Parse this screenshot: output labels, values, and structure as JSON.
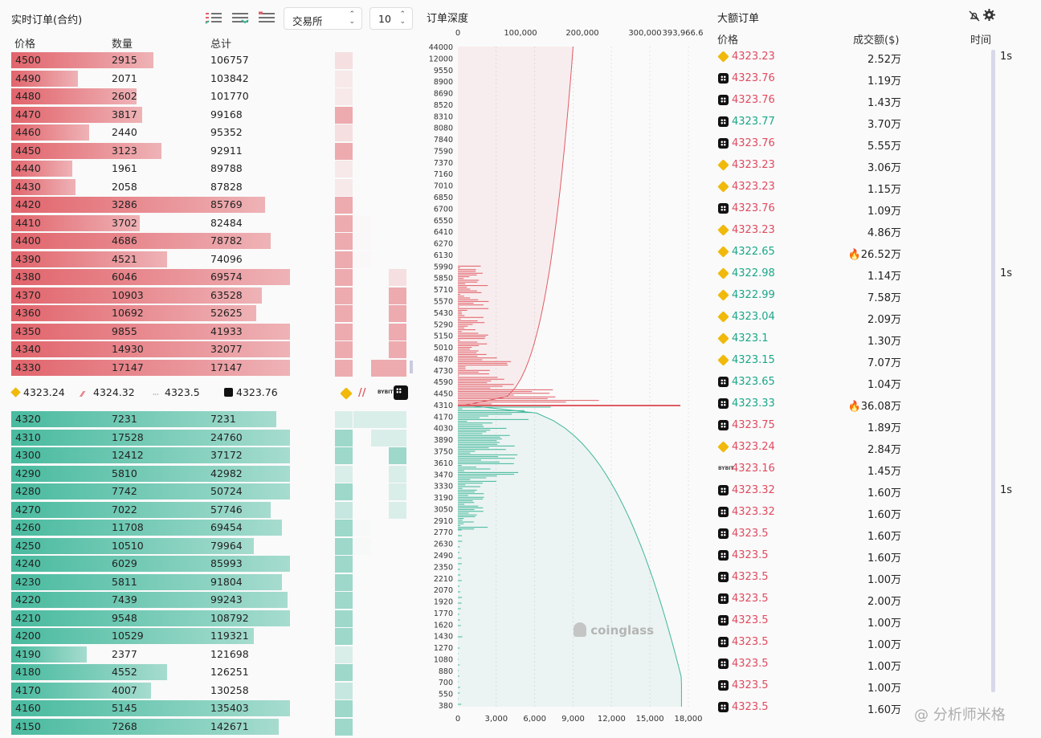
{
  "orderbook": {
    "title": "实时订单(合约)",
    "exchange_select": "交易所",
    "depth_select": "10",
    "col_price": "价格",
    "col_qty": "数量",
    "col_total": "总计",
    "asks": [
      {
        "p": "4500",
        "q": "2915",
        "t": "106757",
        "w": 0.51,
        "ex": [
          0.3,
          0,
          0,
          0
        ]
      },
      {
        "p": "4490",
        "q": "2071",
        "t": "103842",
        "w": 0.24,
        "ex": [
          0.2,
          0,
          0,
          0
        ]
      },
      {
        "p": "4480",
        "q": "2602",
        "t": "101770",
        "w": 0.45,
        "ex": [
          0.2,
          0,
          0,
          0
        ]
      },
      {
        "p": "4470",
        "q": "3817",
        "t": "99168",
        "w": 0.47,
        "ex": [
          0.9,
          0,
          0,
          0
        ]
      },
      {
        "p": "4460",
        "q": "2440",
        "t": "95352",
        "w": 0.28,
        "ex": [
          0.3,
          0,
          0,
          0
        ]
      },
      {
        "p": "4450",
        "q": "3123",
        "t": "92911",
        "w": 0.54,
        "ex": [
          0.9,
          0,
          0,
          0
        ]
      },
      {
        "p": "4440",
        "q": "1961",
        "t": "89788",
        "w": 0.22,
        "ex": [
          0.2,
          0,
          0,
          0
        ]
      },
      {
        "p": "4430",
        "q": "2058",
        "t": "87828",
        "w": 0.23,
        "ex": [
          0.2,
          0,
          0,
          0
        ]
      },
      {
        "p": "4420",
        "q": "3286",
        "t": "85769",
        "w": 0.91,
        "ex": [
          0.9,
          0,
          0,
          0
        ]
      },
      {
        "p": "4410",
        "q": "3702",
        "t": "82484",
        "w": 0.46,
        "ex": [
          0.9,
          0.03,
          0,
          0
        ]
      },
      {
        "p": "4400",
        "q": "4686",
        "t": "78782",
        "w": 0.93,
        "ex": [
          0.9,
          0.03,
          0,
          0
        ]
      },
      {
        "p": "4390",
        "q": "4521",
        "t": "74096",
        "w": 0.56,
        "ex": [
          0.9,
          0.03,
          0,
          0
        ]
      },
      {
        "p": "4380",
        "q": "6046",
        "t": "69574",
        "w": 1.0,
        "ex": [
          0.9,
          0,
          0,
          0.3
        ]
      },
      {
        "p": "4370",
        "q": "10903",
        "t": "63528",
        "w": 0.9,
        "ex": [
          0.9,
          0,
          0,
          0.9
        ]
      },
      {
        "p": "4360",
        "q": "10692",
        "t": "52625",
        "w": 0.88,
        "ex": [
          0.9,
          0,
          0,
          0.9
        ]
      },
      {
        "p": "4350",
        "q": "9855",
        "t": "41933",
        "w": 1.0,
        "ex": [
          0.9,
          0,
          0,
          0.9
        ]
      },
      {
        "p": "4340",
        "q": "14930",
        "t": "32077",
        "w": 1.0,
        "ex": [
          0.9,
          0,
          0,
          0.9
        ]
      },
      {
        "p": "4330",
        "q": "17147",
        "t": "17147",
        "w": 1.0,
        "ex": [
          0.9,
          0,
          0.9,
          0.9
        ]
      }
    ],
    "ref_prices": [
      {
        "icon": "binance-icon",
        "kind": "bn",
        "price": "4323.24"
      },
      {
        "icon": "bybit-slash-icon",
        "kind": "bs",
        "price": "4324.32"
      },
      {
        "icon": "bybit-icon",
        "kind": "by",
        "price": "4323.5"
      },
      {
        "icon": "okx-icon",
        "kind": "ok",
        "price": "4323.76"
      }
    ],
    "bids": [
      {
        "p": "4320",
        "q": "7231",
        "t": "7231",
        "w": 0.95,
        "ex": [
          0.3,
          0.3,
          0.3,
          0.3
        ]
      },
      {
        "p": "4310",
        "q": "17528",
        "t": "24760",
        "w": 1.0,
        "ex": [
          0.9,
          0,
          0.3,
          0.3
        ]
      },
      {
        "p": "4300",
        "q": "12412",
        "t": "37172",
        "w": 1.0,
        "ex": [
          0.9,
          0,
          0,
          0.9
        ]
      },
      {
        "p": "4290",
        "q": "5810",
        "t": "42982",
        "w": 1.0,
        "ex": [
          0.3,
          0,
          0,
          0.3
        ]
      },
      {
        "p": "4280",
        "q": "7742",
        "t": "50724",
        "w": 1.0,
        "ex": [
          0.9,
          0,
          0,
          0.3
        ]
      },
      {
        "p": "4270",
        "q": "7022",
        "t": "57746",
        "w": 0.93,
        "ex": [
          0.5,
          0,
          0,
          0.3
        ]
      },
      {
        "p": "4260",
        "q": "11708",
        "t": "69454",
        "w": 0.97,
        "ex": [
          0.9,
          0.03,
          0,
          0
        ]
      },
      {
        "p": "4250",
        "q": "10510",
        "t": "79964",
        "w": 0.87,
        "ex": [
          0.9,
          0.03,
          0,
          0
        ]
      },
      {
        "p": "4240",
        "q": "6029",
        "t": "85993",
        "w": 1.0,
        "ex": [
          0.9,
          0,
          0,
          0
        ]
      },
      {
        "p": "4230",
        "q": "5811",
        "t": "91804",
        "w": 0.97,
        "ex": [
          0.9,
          0,
          0,
          0
        ]
      },
      {
        "p": "4220",
        "q": "7439",
        "t": "99243",
        "w": 0.99,
        "ex": [
          0.9,
          0,
          0,
          0
        ]
      },
      {
        "p": "4210",
        "q": "9548",
        "t": "108792",
        "w": 1.0,
        "ex": [
          0.9,
          0,
          0,
          0
        ]
      },
      {
        "p": "4200",
        "q": "10529",
        "t": "119321",
        "w": 0.87,
        "ex": [
          0.9,
          0,
          0,
          0
        ]
      },
      {
        "p": "4190",
        "q": "2377",
        "t": "121698",
        "w": 0.27,
        "ex": [
          0.3,
          0,
          0,
          0
        ]
      },
      {
        "p": "4180",
        "q": "4552",
        "t": "126251",
        "w": 0.56,
        "ex": [
          0.9,
          0,
          0,
          0
        ]
      },
      {
        "p": "4170",
        "q": "4007",
        "t": "130258",
        "w": 0.5,
        "ex": [
          0.5,
          0,
          0,
          0
        ]
      },
      {
        "p": "4160",
        "q": "5145",
        "t": "135403",
        "w": 1.0,
        "ex": [
          0.9,
          0,
          0,
          0
        ]
      },
      {
        "p": "4150",
        "q": "7268",
        "t": "142671",
        "w": 0.96,
        "ex": [
          0.9,
          0,
          0,
          0
        ]
      }
    ]
  },
  "depth": {
    "title": "订单深度",
    "top_ticks": [
      "0",
      "100,000",
      "200,000",
      "300,000",
      "393,966.6"
    ],
    "bottom_ticks": [
      "0",
      "3,000",
      "6,000",
      "9,000",
      "12,000",
      "15,000",
      "18,000"
    ],
    "price_labels": [
      "44000",
      "12000",
      "9550",
      "8900",
      "8690",
      "8520",
      "8310",
      "8080",
      "7840",
      "7590",
      "7370",
      "7160",
      "7010",
      "6850",
      "6700",
      "6550",
      "6410",
      "6270",
      "6130",
      "5990",
      "5850",
      "5710",
      "5570",
      "5430",
      "5290",
      "5150",
      "5010",
      "4870",
      "4730",
      "4590",
      "4450",
      "4310",
      "4170",
      "4030",
      "3890",
      "3750",
      "3610",
      "3470",
      "3330",
      "3190",
      "3050",
      "2910",
      "2770",
      "2630",
      "2490",
      "2350",
      "2210",
      "2070",
      "1920",
      "1770",
      "1620",
      "1430",
      "1270",
      "1080",
      "880",
      "700",
      "550",
      "380"
    ],
    "watermark": "coinglass"
  },
  "large_orders": {
    "title": "大额订单",
    "col_price": "价格",
    "col_amount": "成交额($)",
    "col_time": "时间",
    "rows": [
      {
        "ex": "bn",
        "p": "4323.23",
        "side": "red",
        "a": "2.52万",
        "t": "1s",
        "fire": false
      },
      {
        "ex": "ok",
        "p": "4323.76",
        "side": "red",
        "a": "1.19万",
        "t": "",
        "fire": false
      },
      {
        "ex": "ok",
        "p": "4323.76",
        "side": "red",
        "a": "1.43万",
        "t": "",
        "fire": false
      },
      {
        "ex": "ok",
        "p": "4323.77",
        "side": "grn",
        "a": "3.70万",
        "t": "",
        "fire": false
      },
      {
        "ex": "ok",
        "p": "4323.76",
        "side": "red",
        "a": "5.55万",
        "t": "",
        "fire": false
      },
      {
        "ex": "bn",
        "p": "4323.23",
        "side": "red",
        "a": "3.06万",
        "t": "",
        "fire": false
      },
      {
        "ex": "bn",
        "p": "4323.23",
        "side": "red",
        "a": "1.15万",
        "t": "",
        "fire": false
      },
      {
        "ex": "ok",
        "p": "4323.76",
        "side": "red",
        "a": "1.09万",
        "t": "",
        "fire": false
      },
      {
        "ex": "bn",
        "p": "4323.23",
        "side": "red",
        "a": "4.86万",
        "t": "",
        "fire": false
      },
      {
        "ex": "bn",
        "p": "4322.65",
        "side": "grn",
        "a": "26.52万",
        "t": "",
        "fire": true
      },
      {
        "ex": "bn",
        "p": "4322.98",
        "side": "grn",
        "a": "1.14万",
        "t": "1s",
        "fire": false
      },
      {
        "ex": "bn",
        "p": "4322.99",
        "side": "grn",
        "a": "7.58万",
        "t": "",
        "fire": false
      },
      {
        "ex": "bn",
        "p": "4323.04",
        "side": "grn",
        "a": "2.09万",
        "t": "",
        "fire": false
      },
      {
        "ex": "bn",
        "p": "4323.1",
        "side": "grn",
        "a": "1.30万",
        "t": "",
        "fire": false
      },
      {
        "ex": "bn",
        "p": "4323.15",
        "side": "grn",
        "a": "7.07万",
        "t": "",
        "fire": false
      },
      {
        "ex": "ok",
        "p": "4323.65",
        "side": "grn",
        "a": "1.04万",
        "t": "",
        "fire": false
      },
      {
        "ex": "ok",
        "p": "4323.33",
        "side": "grn",
        "a": "36.08万",
        "t": "",
        "fire": true
      },
      {
        "ex": "ok",
        "p": "4323.75",
        "side": "red",
        "a": "1.89万",
        "t": "",
        "fire": false
      },
      {
        "ex": "bn",
        "p": "4323.24",
        "side": "red",
        "a": "2.84万",
        "t": "",
        "fire": false
      },
      {
        "ex": "by",
        "p": "4323.16",
        "side": "red",
        "a": "1.45万",
        "t": "",
        "fire": false
      },
      {
        "ex": "ok",
        "p": "4323.32",
        "side": "red",
        "a": "1.60万",
        "t": "1s",
        "fire": false
      },
      {
        "ex": "ok",
        "p": "4323.32",
        "side": "red",
        "a": "1.60万",
        "t": "",
        "fire": false
      },
      {
        "ex": "ok",
        "p": "4323.5",
        "side": "red",
        "a": "1.60万",
        "t": "",
        "fire": false
      },
      {
        "ex": "ok",
        "p": "4323.5",
        "side": "red",
        "a": "1.60万",
        "t": "",
        "fire": false
      },
      {
        "ex": "ok",
        "p": "4323.5",
        "side": "red",
        "a": "1.00万",
        "t": "",
        "fire": false
      },
      {
        "ex": "ok",
        "p": "4323.5",
        "side": "red",
        "a": "2.00万",
        "t": "",
        "fire": false
      },
      {
        "ex": "ok",
        "p": "4323.5",
        "side": "red",
        "a": "1.00万",
        "t": "",
        "fire": false
      },
      {
        "ex": "ok",
        "p": "4323.5",
        "side": "red",
        "a": "1.00万",
        "t": "",
        "fire": false
      },
      {
        "ex": "ok",
        "p": "4323.5",
        "side": "red",
        "a": "1.00万",
        "t": "",
        "fire": false
      },
      {
        "ex": "ok",
        "p": "4323.5",
        "side": "red",
        "a": "1.00万",
        "t": "",
        "fire": false
      },
      {
        "ex": "ok",
        "p": "4323.5",
        "side": "red",
        "a": "1.60万",
        "t": "",
        "fire": false
      }
    ],
    "watermark": "@ 分析师米格"
  },
  "colors": {
    "ask": "#e05c64",
    "bid": "#3fb79a"
  }
}
